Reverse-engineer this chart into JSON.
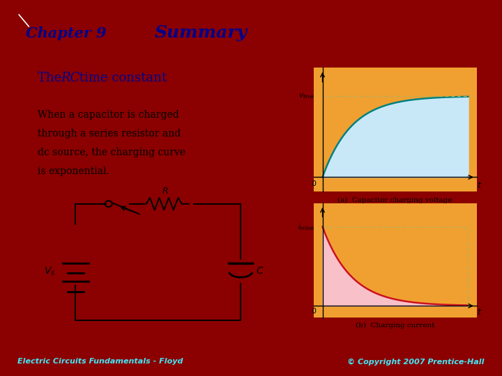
{
  "bg_color": "#8B0000",
  "main_bg": "#d4c8a0",
  "orange_panel": "#f0a030",
  "chapter_box_color": "#f0a030",
  "chapter_text": "Chapter 9",
  "summary_text": "Summary",
  "summary_box_color": "#808898",
  "rc_title_normal": "The ",
  "rc_title_italic": "RC",
  "rc_title_rest": " time constant",
  "rc_box_color": "#b0b8cc",
  "body_line1": "When a capacitor is charged",
  "body_line2": "through a series resistor and",
  "body_line3": "dc source, the charging curve",
  "body_line4": "is exponential.",
  "caption_a": "(a)  Capacitor charging voltage",
  "caption_b": "(b)  Charging current",
  "footer_left": "Electric Circuits Fundamentals - Floyd",
  "footer_right": "© Copyright 2007 Prentice-Hall",
  "curve_color_a": "#008080",
  "fill_color_a": "#c8e8f8",
  "curve_color_b": "#cc1020",
  "fill_color_b": "#f8c0c8",
  "dashed_color": "#b0b060",
  "graph_border": "#888800"
}
